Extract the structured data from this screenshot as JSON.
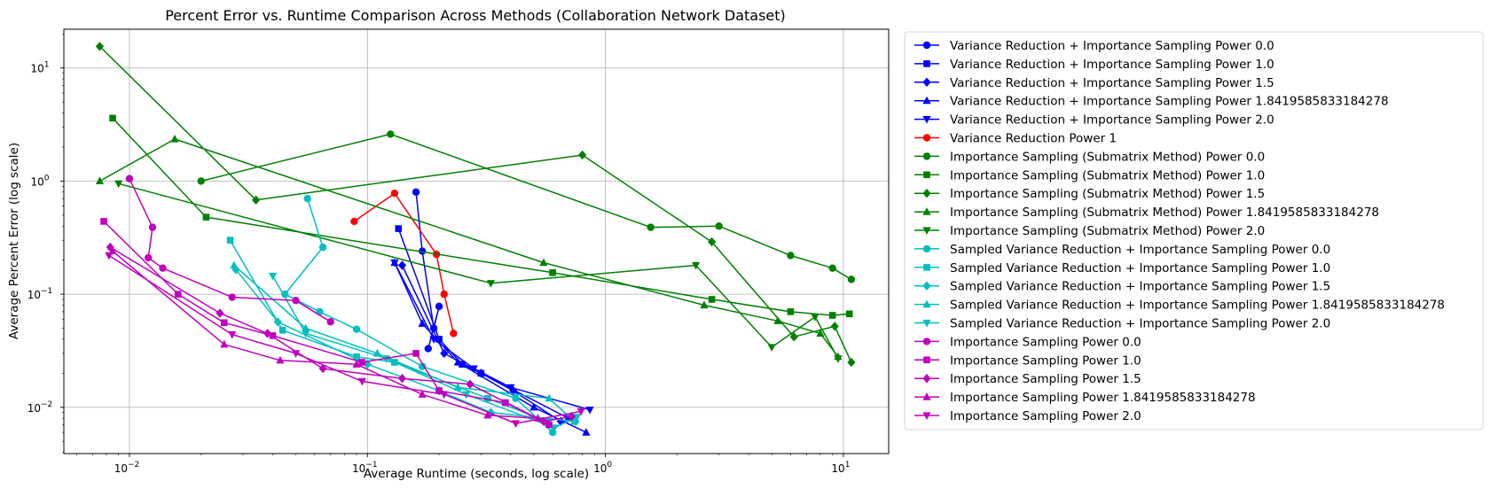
{
  "chart_data": {
    "type": "line",
    "title": "Percent Error vs. Runtime Comparison Across Methods (Collaboration Network Dataset)",
    "xlabel": "Average Runtime (seconds, log scale)",
    "ylabel": "Average Percent Error (log scale)",
    "xscale": "log",
    "yscale": "log",
    "xlim": [
      0.0053,
      15.5
    ],
    "ylim": [
      0.0039,
      22
    ],
    "x_ticks": [
      {
        "value": 0.01,
        "base": "10",
        "exp": "−2"
      },
      {
        "value": 0.1,
        "base": "10",
        "exp": "−1"
      },
      {
        "value": 1,
        "base": "10",
        "exp": "0"
      },
      {
        "value": 10,
        "base": "10",
        "exp": "1"
      }
    ],
    "y_ticks": [
      {
        "value": 0.01,
        "base": "10",
        "exp": "−2"
      },
      {
        "value": 0.1,
        "base": "10",
        "exp": "−1"
      },
      {
        "value": 1,
        "base": "10",
        "exp": "0"
      },
      {
        "value": 10,
        "base": "10",
        "exp": "1"
      }
    ],
    "grid": true,
    "legend_position": "outside-right",
    "series": [
      {
        "name": "Variance Reduction + Importance Sampling Power 0.0",
        "color": "#0000ff",
        "marker": "circle",
        "points": [
          [
            0.16,
            0.8
          ],
          [
            0.17,
            0.24
          ],
          [
            0.19,
            0.05
          ],
          [
            0.2,
            0.078
          ],
          [
            0.18,
            0.033
          ]
        ]
      },
      {
        "name": "Variance Reduction + Importance Sampling Power 1.0",
        "color": "#0000ff",
        "marker": "square",
        "points": [
          [
            0.135,
            0.38
          ],
          [
            0.2,
            0.04
          ],
          [
            0.25,
            0.024
          ],
          [
            0.3,
            0.02
          ],
          [
            0.7,
            0.008
          ]
        ]
      },
      {
        "name": "Variance Reduction + Importance Sampling Power 1.5",
        "color": "#0000ff",
        "marker": "diamond",
        "points": [
          [
            0.14,
            0.18
          ],
          [
            0.21,
            0.03
          ],
          [
            0.3,
            0.02
          ],
          [
            0.41,
            0.014
          ],
          [
            0.65,
            0.0075
          ]
        ]
      },
      {
        "name": "Variance Reduction + Importance Sampling Power 1.8419585833184278",
        "color": "#0000ff",
        "marker": "triangle-up",
        "points": [
          [
            0.13,
            0.19
          ],
          [
            0.17,
            0.055
          ],
          [
            0.24,
            0.025
          ],
          [
            0.5,
            0.01
          ],
          [
            0.83,
            0.006
          ]
        ]
      },
      {
        "name": "Variance Reduction + Importance Sampling Power 2.0",
        "color": "#0000ff",
        "marker": "triangle-down",
        "points": [
          [
            0.13,
            0.19
          ],
          [
            0.19,
            0.04
          ],
          [
            0.28,
            0.022
          ],
          [
            0.4,
            0.015
          ],
          [
            0.86,
            0.0095
          ]
        ]
      },
      {
        "name": "Variance Reduction Power 1",
        "color": "#ff0000",
        "marker": "circle",
        "points": [
          [
            0.088,
            0.44
          ],
          [
            0.13,
            0.78
          ],
          [
            0.195,
            0.225
          ],
          [
            0.21,
            0.1
          ],
          [
            0.23,
            0.045
          ]
        ]
      },
      {
        "name": "Importance Sampling (Submatrix Method) Power 0.0",
        "color": "#008000",
        "marker": "circle",
        "points": [
          [
            0.02,
            1.0
          ],
          [
            0.125,
            2.6
          ],
          [
            1.55,
            0.39
          ],
          [
            3.0,
            0.4
          ],
          [
            6.0,
            0.22
          ],
          [
            9.0,
            0.17
          ],
          [
            10.8,
            0.135
          ]
        ]
      },
      {
        "name": "Importance Sampling (Submatrix Method) Power 1.0",
        "color": "#008000",
        "marker": "square",
        "points": [
          [
            0.0085,
            3.6
          ],
          [
            0.021,
            0.48
          ],
          [
            0.6,
            0.155
          ],
          [
            2.8,
            0.09
          ],
          [
            6.0,
            0.07
          ],
          [
            9.0,
            0.065
          ],
          [
            10.6,
            0.067
          ]
        ]
      },
      {
        "name": "Importance Sampling (Submatrix Method) Power 1.5",
        "color": "#008000",
        "marker": "diamond",
        "points": [
          [
            0.0075,
            15.5
          ],
          [
            0.034,
            0.68
          ],
          [
            0.8,
            1.7
          ],
          [
            2.8,
            0.29
          ],
          [
            6.2,
            0.042
          ],
          [
            9.2,
            0.052
          ],
          [
            10.8,
            0.025
          ]
        ]
      },
      {
        "name": "Importance Sampling (Submatrix Method) Power 1.8419585833184278",
        "color": "#008000",
        "marker": "triangle-up",
        "points": [
          [
            0.0075,
            1.0
          ],
          [
            0.0155,
            2.35
          ],
          [
            0.55,
            0.19
          ],
          [
            2.6,
            0.08
          ],
          [
            5.3,
            0.058
          ],
          [
            8.0,
            0.045
          ],
          [
            9.5,
            0.028
          ]
        ]
      },
      {
        "name": "Importance Sampling (Submatrix Method) Power 2.0",
        "color": "#008000",
        "marker": "triangle-down",
        "points": [
          [
            0.009,
            0.95
          ],
          [
            0.33,
            0.125
          ],
          [
            2.4,
            0.18
          ],
          [
            5.0,
            0.034
          ],
          [
            7.6,
            0.063
          ],
          [
            9.5,
            0.027
          ]
        ]
      },
      {
        "name": "Sampled Variance Reduction + Importance Sampling Power 0.0",
        "color": "#00bfbf",
        "marker": "circle",
        "points": [
          [
            0.056,
            0.7
          ],
          [
            0.065,
            0.26
          ],
          [
            0.045,
            0.1
          ],
          [
            0.063,
            0.07
          ],
          [
            0.09,
            0.049
          ],
          [
            0.17,
            0.023
          ],
          [
            0.42,
            0.012
          ],
          [
            0.6,
            0.006
          ]
        ]
      },
      {
        "name": "Sampled Variance Reduction + Importance Sampling Power 1.0",
        "color": "#00bfbf",
        "marker": "square",
        "points": [
          [
            0.0265,
            0.3
          ],
          [
            0.044,
            0.048
          ],
          [
            0.09,
            0.028
          ],
          [
            0.13,
            0.025
          ],
          [
            0.32,
            0.012
          ],
          [
            0.57,
            0.0075
          ]
        ]
      },
      {
        "name": "Sampled Variance Reduction + Importance Sampling Power 1.5",
        "color": "#00bfbf",
        "marker": "diamond",
        "points": [
          [
            0.028,
            0.165
          ],
          [
            0.042,
            0.057
          ],
          [
            0.1,
            0.024
          ],
          [
            0.2,
            0.014
          ],
          [
            0.33,
            0.009
          ],
          [
            0.75,
            0.0075
          ]
        ]
      },
      {
        "name": "Sampled Variance Reduction + Importance Sampling Power 1.8419585833184278",
        "color": "#00bfbf",
        "marker": "triangle-up",
        "points": [
          [
            0.0275,
            0.18
          ],
          [
            0.055,
            0.05
          ],
          [
            0.11,
            0.03
          ],
          [
            0.24,
            0.015
          ],
          [
            0.58,
            0.012
          ],
          [
            0.74,
            0.0075
          ]
        ]
      },
      {
        "name": "Sampled Variance Reduction + Importance Sampling Power 2.0",
        "color": "#00bfbf",
        "marker": "triangle-down",
        "points": [
          [
            0.04,
            0.145
          ],
          [
            0.055,
            0.045
          ],
          [
            0.12,
            0.027
          ],
          [
            0.26,
            0.013
          ],
          [
            0.61,
            0.0066
          ],
          [
            0.76,
            0.0082
          ]
        ]
      },
      {
        "name": "Importance Sampling Power 0.0",
        "color": "#bf00bf",
        "marker": "circle",
        "points": [
          [
            0.01,
            1.05
          ],
          [
            0.0125,
            0.39
          ],
          [
            0.012,
            0.21
          ],
          [
            0.0138,
            0.17
          ],
          [
            0.027,
            0.094
          ],
          [
            0.05,
            0.088
          ],
          [
            0.07,
            0.057
          ]
        ]
      },
      {
        "name": "Importance Sampling Power 1.0",
        "color": "#bf00bf",
        "marker": "square",
        "points": [
          [
            0.0078,
            0.44
          ],
          [
            0.016,
            0.1
          ],
          [
            0.025,
            0.056
          ],
          [
            0.04,
            0.043
          ],
          [
            0.095,
            0.025
          ],
          [
            0.16,
            0.03
          ],
          [
            0.2,
            0.014
          ],
          [
            0.38,
            0.011
          ],
          [
            0.58,
            0.007
          ]
        ]
      },
      {
        "name": "Importance Sampling Power 1.5",
        "color": "#bf00bf",
        "marker": "diamond",
        "points": [
          [
            0.0083,
            0.26
          ],
          [
            0.024,
            0.068
          ],
          [
            0.038,
            0.045
          ],
          [
            0.065,
            0.022
          ],
          [
            0.14,
            0.018
          ],
          [
            0.27,
            0.016
          ],
          [
            0.55,
            0.0075
          ],
          [
            0.72,
            0.0083
          ]
        ]
      },
      {
        "name": "Importance Sampling Power 1.8419585833184278",
        "color": "#bf00bf",
        "marker": "triangle-up",
        "points": [
          [
            0.0085,
            0.24
          ],
          [
            0.025,
            0.036
          ],
          [
            0.043,
            0.026
          ],
          [
            0.09,
            0.024
          ],
          [
            0.17,
            0.013
          ],
          [
            0.32,
            0.0085
          ],
          [
            0.52,
            0.008
          ]
        ]
      },
      {
        "name": "Importance Sampling Power 2.0",
        "color": "#bf00bf",
        "marker": "triangle-down",
        "points": [
          [
            0.0082,
            0.22
          ],
          [
            0.027,
            0.044
          ],
          [
            0.05,
            0.03
          ],
          [
            0.095,
            0.017
          ],
          [
            0.21,
            0.013
          ],
          [
            0.42,
            0.0072
          ],
          [
            0.79,
            0.0092
          ]
        ]
      }
    ]
  }
}
